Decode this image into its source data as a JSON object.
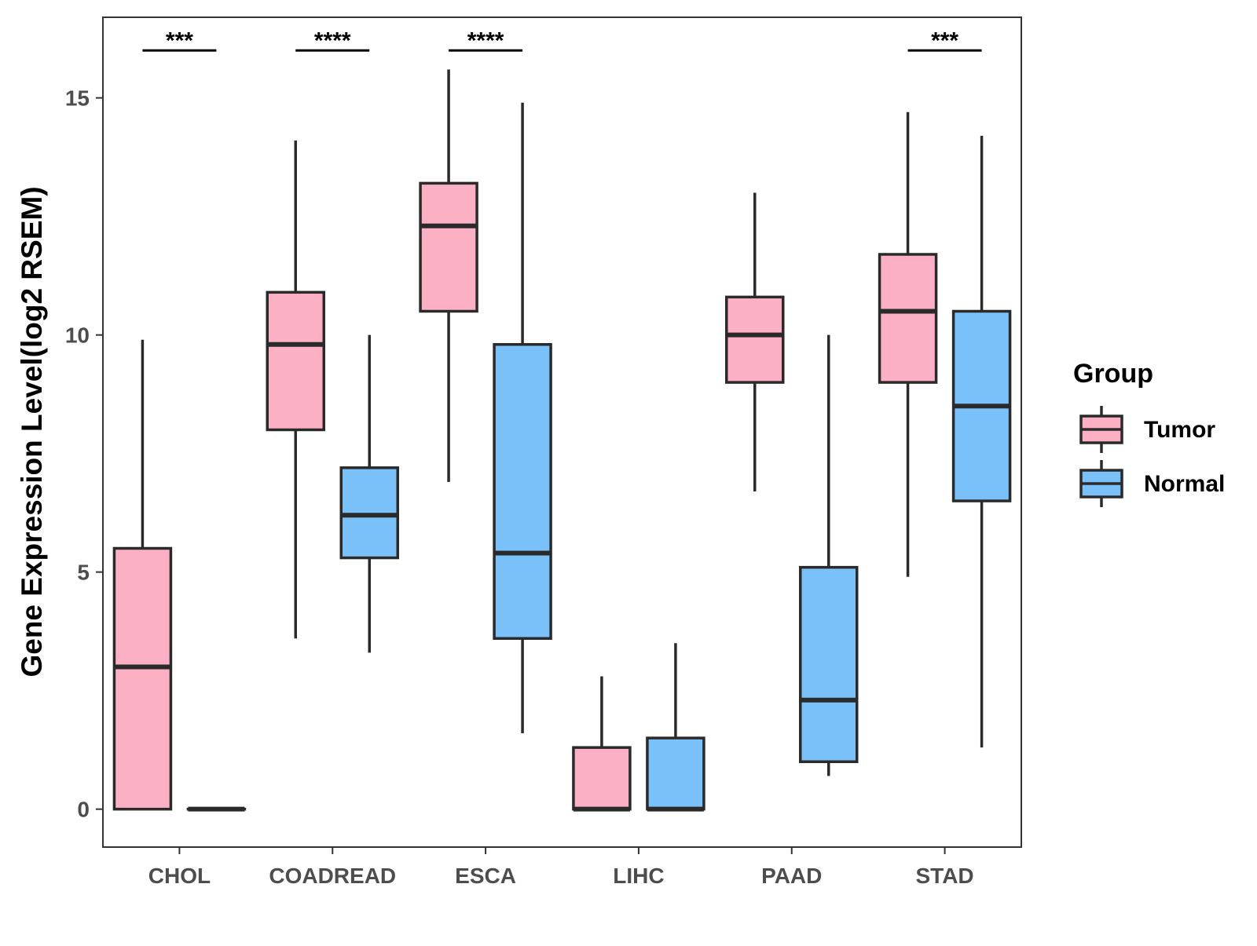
{
  "chart_data": {
    "type": "boxplot",
    "title": "",
    "xlabel": "",
    "ylabel": "Gene Expression Level(log2 RSEM)",
    "ylim": [
      -0.8,
      16.7
    ],
    "yticks": [
      0,
      5,
      10,
      15
    ],
    "categories": [
      "CHOL",
      "COADREAD",
      "ESCA",
      "LIHC",
      "PAAD",
      "STAD"
    ],
    "legend": {
      "title": "Group",
      "position": "right"
    },
    "colors": {
      "Tumor": "#fbb1c3",
      "Normal": "#79c1f8",
      "outline": "#2a2a2a",
      "axis": "#333333"
    },
    "series": [
      {
        "name": "Tumor",
        "boxes": [
          {
            "category": "CHOL",
            "min": 0.0,
            "q1": 0.0,
            "median": 3.0,
            "q3": 5.5,
            "max": 9.9
          },
          {
            "category": "COADREAD",
            "min": 3.6,
            "q1": 8.0,
            "median": 9.8,
            "q3": 10.9,
            "max": 14.1
          },
          {
            "category": "ESCA",
            "min": 6.9,
            "q1": 10.5,
            "median": 12.3,
            "q3": 13.2,
            "max": 15.6
          },
          {
            "category": "LIHC",
            "min": 0.0,
            "q1": 0.0,
            "median": 0.0,
            "q3": 1.3,
            "max": 2.8
          },
          {
            "category": "PAAD",
            "min": 6.7,
            "q1": 9.0,
            "median": 10.0,
            "q3": 10.8,
            "max": 13.0
          },
          {
            "category": "STAD",
            "min": 4.9,
            "q1": 9.0,
            "median": 10.5,
            "q3": 11.7,
            "max": 14.7
          }
        ]
      },
      {
        "name": "Normal",
        "boxes": [
          {
            "category": "CHOL",
            "min": 0.0,
            "q1": 0.0,
            "median": 0.0,
            "q3": 0.0,
            "max": 0.0
          },
          {
            "category": "COADREAD",
            "min": 3.3,
            "q1": 5.3,
            "median": 6.2,
            "q3": 7.2,
            "max": 10.0
          },
          {
            "category": "ESCA",
            "min": 1.6,
            "q1": 3.6,
            "median": 5.4,
            "q3": 9.8,
            "max": 14.9
          },
          {
            "category": "LIHC",
            "min": 0.0,
            "q1": 0.0,
            "median": 0.0,
            "q3": 1.5,
            "max": 3.5
          },
          {
            "category": "PAAD",
            "min": 0.7,
            "q1": 1.0,
            "median": 2.3,
            "q3": 5.1,
            "max": 10.0
          },
          {
            "category": "STAD",
            "min": 1.3,
            "q1": 6.5,
            "median": 8.5,
            "q3": 10.5,
            "max": 14.2
          }
        ]
      }
    ],
    "significance": [
      {
        "category": "CHOL",
        "label": "***",
        "y": 16.0
      },
      {
        "category": "COADREAD",
        "label": "****",
        "y": 16.0
      },
      {
        "category": "ESCA",
        "label": "****",
        "y": 16.0
      },
      {
        "category": "STAD",
        "label": "***",
        "y": 16.0
      }
    ]
  }
}
